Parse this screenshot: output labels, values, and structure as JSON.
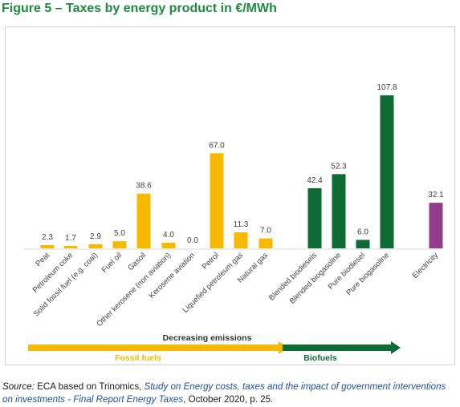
{
  "figure_title": "Figure 5 – Taxes by energy product in €/MWh",
  "chart_data": {
    "type": "bar",
    "categories": [
      "Peat",
      "Petroleum coke",
      "Solid fossil fuel (e.g. coal)",
      "Fuel oil",
      "Gasoil",
      "Other kerosene (non aviation)",
      "Kerosene aviation",
      "Petrol",
      "Liquefied petroleum gas",
      "Natural gas",
      "Blended biodiesels",
      "Blended biogasoline",
      "Pure biodiesel",
      "Pure biogasoline",
      "Electricity"
    ],
    "values": [
      2.3,
      1.7,
      2.9,
      5.0,
      38.6,
      4.0,
      0.0,
      67.0,
      11.3,
      7.0,
      42.4,
      52.3,
      6.0,
      107.8,
      32.1
    ],
    "value_labels": [
      "2.3",
      "1.7",
      "2.9",
      "5.0",
      "38.6",
      "4.0",
      "0.0",
      "67.0",
      "11.3",
      "7.0",
      "42.4",
      "52.3",
      "6.0",
      "107.8",
      "32.1"
    ],
    "groups": [
      "fossil",
      "fossil",
      "fossil",
      "fossil",
      "fossil",
      "fossil",
      "fossil",
      "fossil",
      "fossil",
      "fossil",
      "biofuel",
      "biofuel",
      "biofuel",
      "biofuel",
      "electricity"
    ],
    "colors": {
      "fossil": "#f7b900",
      "biofuel": "#0f6b35",
      "electricity": "#913d88"
    },
    "ylim": [
      0,
      110
    ],
    "grid": false,
    "arrows": {
      "caption": "Decreasing emissions",
      "fossil_label": "Fossil fuels",
      "biofuel_label": "Biofuels"
    }
  },
  "source": {
    "prefix": "Source:",
    "text_before": " ECA based on Trinomics, ",
    "study_title": "Study on Energy costs, taxes and the impact of government interventions on investments - Final Report Energy Taxes",
    "text_after": ", October 2020, p. 25."
  }
}
